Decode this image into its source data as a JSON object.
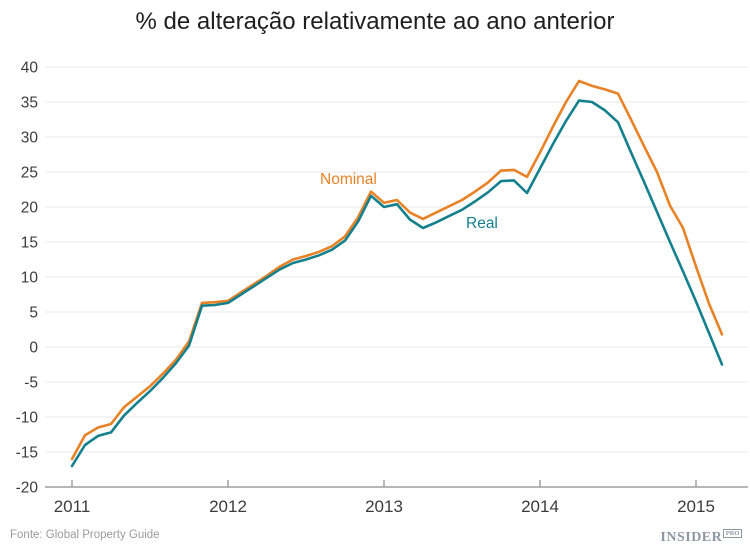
{
  "title": "% de alteração relativamente ao ano anterior",
  "footer": {
    "source": "Fonte: Global Property Guide",
    "brand": "INSIDER",
    "brand_suffix": "PRO"
  },
  "colors": {
    "nominal": "#E78227",
    "real": "#14808D",
    "grid": "#EAEAEA",
    "axis": "#8C8C8C",
    "tick_label": "#3C3C3C",
    "title_text": "#1E1E1E",
    "source_text": "#9B9B9B",
    "brand_text": "#8D97A2"
  },
  "chart_data": {
    "type": "line",
    "title": "% de alteração relativamente ao ano anterior",
    "xlabel": "",
    "ylabel": "",
    "grid": "horizontal",
    "legend_position": "inline-labels",
    "ylim": [
      -20,
      40
    ],
    "y_tick_step": 5,
    "x_tick_labels": [
      "2011",
      "2012",
      "2013",
      "2014",
      "2015"
    ],
    "x_unit": "month",
    "x": [
      "2011-01",
      "2011-02",
      "2011-03",
      "2011-04",
      "2011-05",
      "2011-06",
      "2011-07",
      "2011-08",
      "2011-09",
      "2011-10",
      "2011-11",
      "2011-12",
      "2012-01",
      "2012-02",
      "2012-03",
      "2012-04",
      "2012-05",
      "2012-06",
      "2012-07",
      "2012-08",
      "2012-09",
      "2012-10",
      "2012-11",
      "2012-12",
      "2013-01",
      "2013-02",
      "2013-03",
      "2013-04",
      "2013-05",
      "2013-06",
      "2013-07",
      "2013-08",
      "2013-09",
      "2013-10",
      "2013-11",
      "2013-12",
      "2014-01",
      "2014-02",
      "2014-03",
      "2014-04",
      "2014-05",
      "2014-06",
      "2014-07",
      "2014-08",
      "2014-09",
      "2014-10",
      "2014-11",
      "2014-12",
      "2015-01",
      "2015-02",
      "2015-03"
    ],
    "series": [
      {
        "name": "Nominal",
        "color": "#E78227",
        "values": [
          -16.0,
          -12.6,
          -11.5,
          -11.0,
          -8.6,
          -7.1,
          -5.6,
          -3.8,
          -1.8,
          0.8,
          6.3,
          6.4,
          6.6,
          7.8,
          9.0,
          10.2,
          11.5,
          12.5,
          13.0,
          13.6,
          14.4,
          15.8,
          18.5,
          22.2,
          20.6,
          21.0,
          19.2,
          18.3,
          19.2,
          20.1,
          21.0,
          22.2,
          23.5,
          25.2,
          25.3,
          24.3,
          27.8,
          31.5,
          35.0,
          38.0,
          37.3,
          36.8,
          36.2,
          32.5,
          28.7,
          25.0,
          20.2,
          17.0,
          11.5,
          6.2,
          1.8
        ]
      },
      {
        "name": "Real",
        "color": "#14808D",
        "values": [
          -17.0,
          -14.0,
          -12.7,
          -12.2,
          -9.8,
          -8.0,
          -6.3,
          -4.4,
          -2.3,
          0.2,
          5.9,
          6.0,
          6.3,
          7.5,
          8.7,
          9.9,
          11.1,
          12.0,
          12.5,
          13.1,
          13.9,
          15.2,
          17.9,
          21.6,
          20.0,
          20.4,
          18.2,
          17.0,
          17.8,
          18.7,
          19.6,
          20.8,
          22.1,
          23.7,
          23.8,
          22.0,
          25.5,
          29.0,
          32.3,
          35.2,
          35.0,
          33.8,
          32.1,
          27.8,
          23.6,
          19.3,
          15.0,
          10.8,
          6.5,
          2.0,
          -2.5
        ]
      }
    ],
    "source": "Fonte: Global Property Guide"
  }
}
